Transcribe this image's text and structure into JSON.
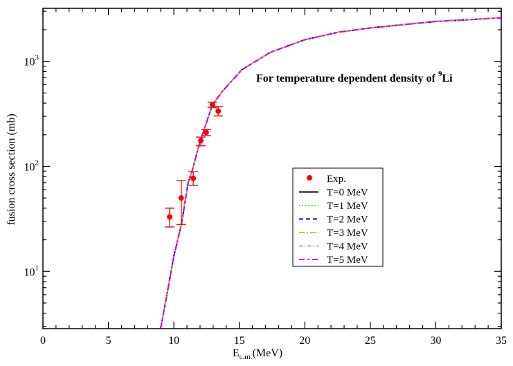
{
  "chart_data": {
    "type": "line",
    "title": "",
    "annotation": {
      "text": "For temperature dependent density of ",
      "superscript": "9",
      "suffix": "Li"
    },
    "xlabel": {
      "main": "E",
      "subscript": "c.m.",
      "suffix": "(MeV)"
    },
    "ylabel": "fusion cross section (mb)",
    "xlim": [
      0,
      35
    ],
    "ylim": [
      2.85,
      3200
    ],
    "yscale": "log",
    "xticks": [
      0,
      5,
      10,
      15,
      20,
      25,
      30,
      35
    ],
    "yticks": [
      {
        "base": "10",
        "exp": "1",
        "value": 10
      },
      {
        "base": "10",
        "exp": "2",
        "value": 100
      },
      {
        "base": "10",
        "exp": "3",
        "value": 1000
      }
    ],
    "grid": false,
    "legend_position": "center-right",
    "experiment": {
      "name": "Exp.",
      "color": "#ff0000",
      "points": [
        {
          "x": 9.68,
          "y": 33,
          "ylo": 26.5,
          "yhi": 40
        },
        {
          "x": 10.56,
          "y": 50,
          "ylo": 28,
          "yhi": 73
        },
        {
          "x": 11.48,
          "y": 77,
          "ylo": 66,
          "yhi": 89
        },
        {
          "x": 12.06,
          "y": 176,
          "ylo": 157,
          "yhi": 190
        },
        {
          "x": 12.47,
          "y": 211,
          "ylo": 196,
          "yhi": 224
        },
        {
          "x": 12.94,
          "y": 386,
          "ylo": 363,
          "yhi": 408
        },
        {
          "x": 13.39,
          "y": 336,
          "ylo": 302,
          "yhi": 371
        }
      ]
    },
    "x": [
      9.0,
      9.5,
      10.0,
      10.58,
      11.1,
      11.39,
      11.96,
      12.5,
      12.94,
      13.74,
      15.2,
      17.35,
      20,
      22.6,
      25,
      27.9,
      30,
      35
    ],
    "series": [
      {
        "name": "T=0 MeV",
        "color": "#000000",
        "dash": "",
        "values": [
          2.9,
          6.3,
          14,
          28,
          71,
          90,
          166,
          263,
          386,
          525,
          835,
          1215,
          1607,
          1900,
          2080,
          2260,
          2400,
          2594
        ]
      },
      {
        "name": "T=1 MeV",
        "color": "#22cc22",
        "dash": "1.5,3",
        "values": [
          2.9,
          6.3,
          14,
          28,
          71,
          90,
          166,
          263,
          386,
          525,
          835,
          1215,
          1607,
          1900,
          2080,
          2260,
          2400,
          2594
        ]
      },
      {
        "name": "T=2 MeV",
        "color": "#0000cc",
        "dash": "6,4",
        "values": [
          2.9,
          6.3,
          14,
          28,
          71,
          90,
          166,
          263,
          386,
          525,
          835,
          1215,
          1607,
          1900,
          2080,
          2260,
          2400,
          2594
        ]
      },
      {
        "name": "T=3 MeV",
        "color": "#ffaa00",
        "dash": "8,3,2,3",
        "values": [
          2.9,
          6.3,
          14,
          28,
          71,
          90,
          166,
          263,
          386,
          525,
          835,
          1215,
          1607,
          1900,
          2080,
          2260,
          2400,
          2594
        ]
      },
      {
        "name": "T=4 MeV",
        "color": "#b8a0b8",
        "dash": "5,3,1.5,3",
        "values": [
          2.9,
          6.3,
          14,
          28,
          71,
          90,
          166,
          263,
          386,
          525,
          835,
          1215,
          1607,
          1900,
          2080,
          2260,
          2400,
          2594
        ]
      },
      {
        "name": "T=5 MeV",
        "color": "#dd00dd",
        "dash": "8,4,3,4",
        "values": [
          2.9,
          6.3,
          14,
          28,
          71,
          90,
          166,
          263,
          386,
          525,
          835,
          1215,
          1607,
          1900,
          2080,
          2260,
          2400,
          2594
        ]
      }
    ]
  }
}
